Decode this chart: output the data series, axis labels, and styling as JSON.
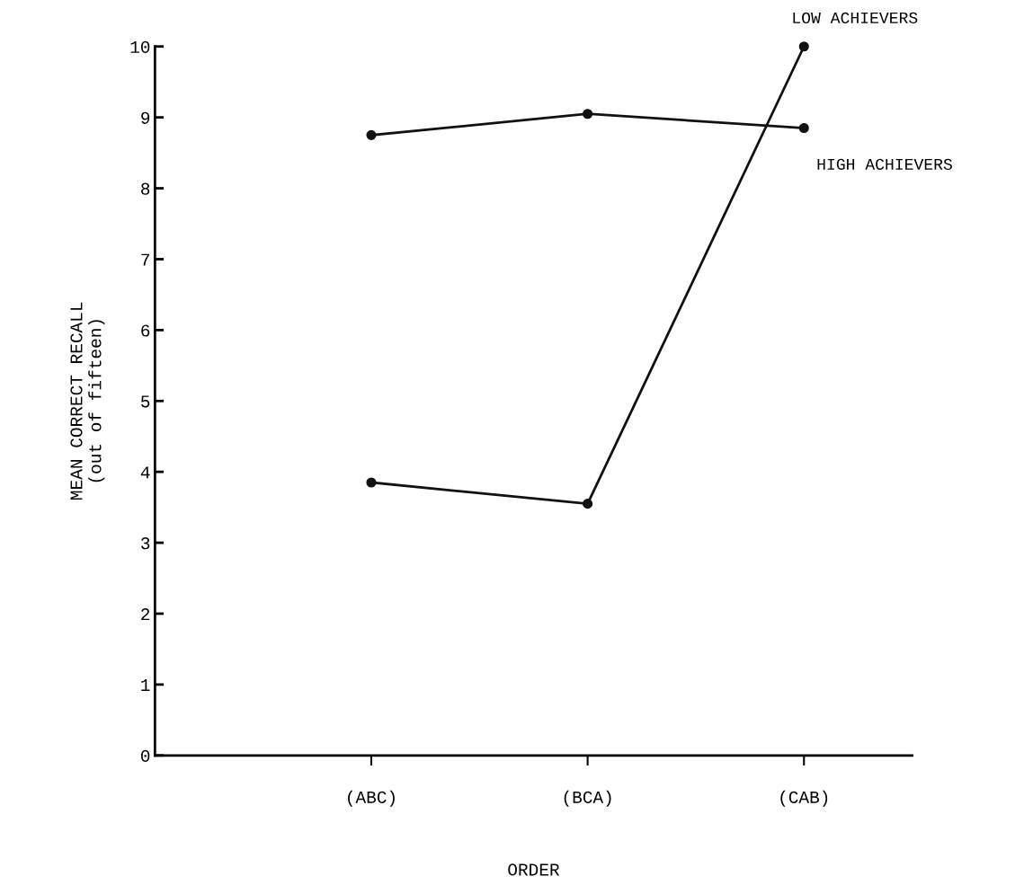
{
  "chart_data": {
    "type": "line",
    "xlabel": "ORDER",
    "ylabel": "MEAN CORRECT RECALL\n(out of fifteen)",
    "categories": [
      "(ABC)",
      "(BCA)",
      "(CAB)"
    ],
    "series": [
      {
        "name": "HIGH ACHIEVERS",
        "color": "#111111",
        "values": [
          8.75,
          9.05,
          8.85
        ]
      },
      {
        "name": "LOW ACHIEVERS",
        "color": "#111111",
        "values": [
          3.85,
          3.55,
          10.0
        ]
      }
    ],
    "ylim": [
      0,
      10
    ],
    "yticks": [
      0,
      1,
      2,
      3,
      4,
      5,
      6,
      7,
      8,
      9,
      10
    ],
    "marker": "circle",
    "line_style": "solid",
    "grid": false,
    "legend": false
  }
}
